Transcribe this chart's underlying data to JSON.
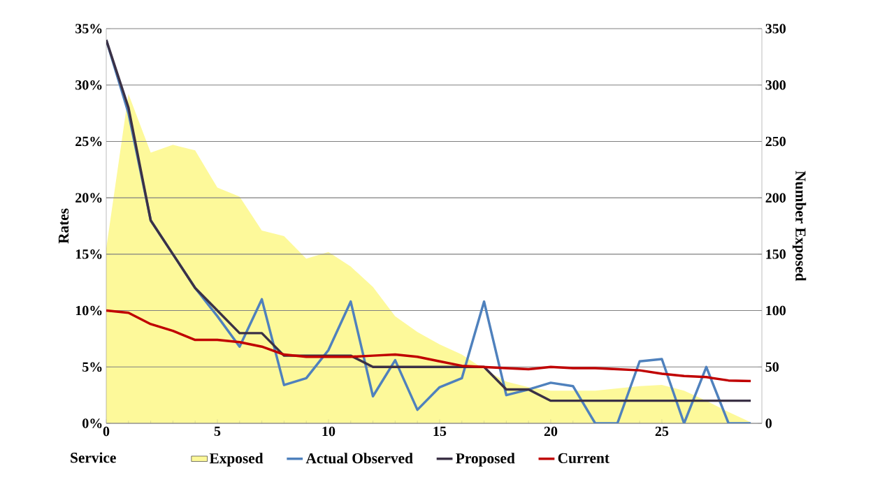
{
  "chart_data": {
    "type": "line",
    "xlabel": "Service",
    "ylabel": "Rates",
    "y2label": "Number Exposed",
    "x": [
      0,
      1,
      2,
      3,
      4,
      5,
      6,
      7,
      8,
      9,
      10,
      11,
      12,
      13,
      14,
      15,
      16,
      17,
      18,
      19,
      20,
      21,
      22,
      23,
      24,
      25,
      26,
      27,
      28,
      29
    ],
    "series": [
      {
        "name": "Exposed",
        "type": "area",
        "axis": "y2",
        "color": "#fdf99a",
        "values": [
          155,
          292,
          240,
          247,
          242,
          209,
          201,
          171,
          166,
          146,
          152,
          139,
          121,
          95,
          81,
          70,
          61,
          48,
          37,
          32,
          29,
          29,
          29,
          31,
          33,
          34,
          29,
          20,
          10,
          1
        ]
      },
      {
        "name": "Actual Observed",
        "color": "#4f81bd",
        "values": [
          34,
          27.5,
          18,
          15,
          12,
          9.5,
          6.8,
          11,
          3.4,
          4,
          6.5,
          10.8,
          2.4,
          5.6,
          1.2,
          3.2,
          4,
          10.8,
          2.5,
          3,
          3.6,
          3.3,
          0,
          0,
          5.5,
          5.7,
          0,
          5,
          0,
          0
        ]
      },
      {
        "name": "Proposed",
        "color": "#3b3146",
        "values": [
          34,
          28,
          18,
          15,
          12,
          10,
          8,
          8,
          6,
          6,
          6,
          6,
          5,
          5,
          5,
          5,
          5,
          5,
          3,
          3,
          2,
          2,
          2,
          2,
          2,
          2,
          2,
          2,
          2,
          2
        ]
      },
      {
        "name": "Current",
        "color": "#c00000",
        "values": [
          10,
          9.8,
          8.8,
          8.2,
          7.4,
          7.4,
          7.2,
          6.8,
          6.1,
          5.9,
          5.9,
          5.9,
          6,
          6.1,
          5.9,
          5.5,
          5.1,
          5,
          4.9,
          4.8,
          5,
          4.9,
          4.9,
          4.8,
          4.7,
          4.4,
          4.2,
          4.1,
          3.8,
          3.75
        ]
      }
    ],
    "xlim": [
      0,
      29.5
    ],
    "xticks": [
      0,
      5,
      10,
      15,
      20,
      25
    ],
    "ylim": [
      0,
      35
    ],
    "yticks": [
      {
        "value": 0,
        "label": "0%"
      },
      {
        "value": 5,
        "label": "5%"
      },
      {
        "value": 10,
        "label": "10%"
      },
      {
        "value": 15,
        "label": "15%"
      },
      {
        "value": 20,
        "label": "20%"
      },
      {
        "value": 25,
        "label": "25%"
      },
      {
        "value": 30,
        "label": "30%"
      },
      {
        "value": 35,
        "label": "35%"
      }
    ],
    "y2lim": [
      0,
      350
    ],
    "y2ticks": [
      0,
      50,
      100,
      150,
      200,
      250,
      300,
      350
    ],
    "grid": "y",
    "legend": "bottom",
    "marker": "none"
  }
}
